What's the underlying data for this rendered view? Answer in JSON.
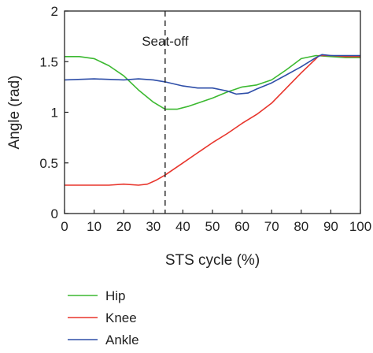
{
  "chart_data": {
    "type": "line",
    "title": "",
    "xlabel": "STS cycle (%)",
    "ylabel": "Angle (rad)",
    "xlim": [
      0,
      100
    ],
    "ylim": [
      0,
      2
    ],
    "xticks": [
      "0",
      "10",
      "20",
      "30",
      "40",
      "50",
      "60",
      "70",
      "80",
      "90",
      "100"
    ],
    "yticks": [
      "0",
      "0.5",
      "1",
      "1.5",
      "2"
    ],
    "grid": false,
    "legend_position": "bottom-left, below plot",
    "annotations": [
      {
        "text": "Seat-off",
        "x": 34,
        "style": "dashed vertical line"
      }
    ],
    "series": [
      {
        "name": "Hip",
        "color": "#3cb931",
        "x": [
          0,
          5,
          10,
          15,
          20,
          25,
          30,
          34,
          38,
          42,
          46,
          50,
          55,
          60,
          65,
          70,
          75,
          80,
          85,
          90,
          95,
          100
        ],
        "y": [
          1.55,
          1.55,
          1.53,
          1.46,
          1.36,
          1.22,
          1.1,
          1.03,
          1.03,
          1.06,
          1.1,
          1.14,
          1.2,
          1.25,
          1.27,
          1.32,
          1.42,
          1.53,
          1.56,
          1.55,
          1.54,
          1.54
        ]
      },
      {
        "name": "Knee",
        "color": "#e8352c",
        "x": [
          0,
          5,
          10,
          15,
          20,
          25,
          28,
          31,
          34,
          40,
          45,
          50,
          55,
          60,
          65,
          70,
          75,
          80,
          85,
          86,
          90,
          95,
          100
        ],
        "y": [
          0.28,
          0.28,
          0.28,
          0.28,
          0.29,
          0.28,
          0.29,
          0.33,
          0.38,
          0.5,
          0.6,
          0.7,
          0.79,
          0.89,
          0.98,
          1.09,
          1.24,
          1.39,
          1.53,
          1.56,
          1.56,
          1.55,
          1.55
        ]
      },
      {
        "name": "Ankle",
        "color": "#2e4ea8",
        "x": [
          0,
          10,
          20,
          25,
          30,
          34,
          40,
          45,
          50,
          55,
          58,
          62,
          65,
          70,
          75,
          80,
          85,
          87,
          90,
          95,
          100
        ],
        "y": [
          1.32,
          1.33,
          1.32,
          1.33,
          1.32,
          1.3,
          1.26,
          1.24,
          1.24,
          1.21,
          1.18,
          1.19,
          1.23,
          1.29,
          1.37,
          1.45,
          1.54,
          1.57,
          1.56,
          1.56,
          1.56
        ]
      }
    ]
  }
}
